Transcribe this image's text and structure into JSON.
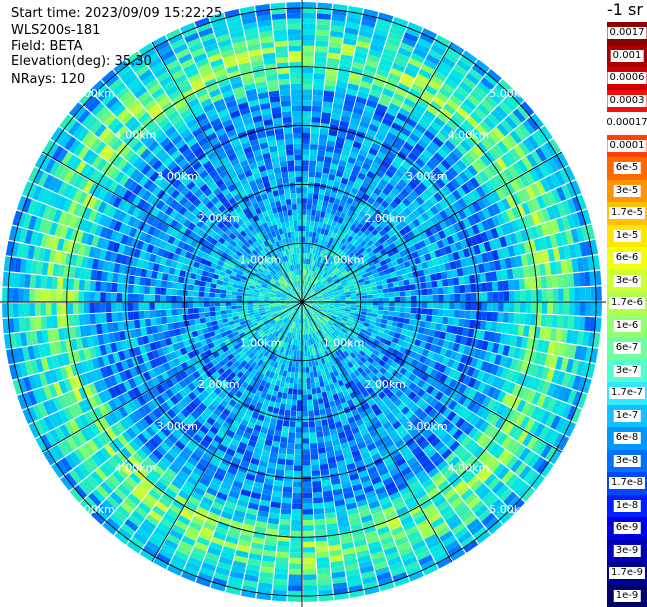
{
  "info": {
    "start_time": "Start time: 2023/09/09 15:22:25",
    "instrument": "WLS200s-181",
    "field": "Field: BETA",
    "elevation": "Elevation(deg): 35.30",
    "nrays": "NRays: 120"
  },
  "colorbar": {
    "unit": "-1 sr",
    "ticks": [
      "0.0017",
      "0.001",
      "0.0006",
      "0.0003",
      "0.00017",
      "0.0001",
      "6e-5",
      "3e-5",
      "1.7e-5",
      "1e-5",
      "6e-6",
      "3e-6",
      "1.7e-6",
      "1e-6",
      "6e-7",
      "3e-7",
      "1.7e-7",
      "1e-7",
      "6e-8",
      "3e-8",
      "1.7e-8",
      "1e-8",
      "6e-9",
      "3e-9",
      "1.7e-9",
      "1e-9"
    ],
    "colors": [
      "#8b0000",
      "#aa0000",
      "#d00000",
      "#f01010",
      "#ffffff",
      "#ff4000",
      "#ff6a00",
      "#ff9400",
      "#ffbe00",
      "#ffe600",
      "#f0ff10",
      "#ceff30",
      "#b0ff50",
      "#90ff70",
      "#70ffa0",
      "#50ffcf",
      "#30e8ff",
      "#10c0ff",
      "#0098ff",
      "#0070ff",
      "#0048ff",
      "#0020ff",
      "#0000e0",
      "#0000b8",
      "#000090",
      "#000068"
    ]
  },
  "chart_data": {
    "type": "heatmap",
    "projection": "polar PPI (plan position indicator)",
    "field": "BETA",
    "units": "-1 sr",
    "elevation_deg": 35.3,
    "n_rays": 120,
    "range_rings_km": [
      1.0,
      2.0,
      3.0,
      4.0,
      5.0
    ],
    "range_labels": [
      "1.00km",
      "2.00km",
      "3.00km",
      "4.00km",
      "5.00km"
    ],
    "spokes_deg": [
      0,
      30,
      60,
      90,
      120,
      150,
      180,
      210,
      240,
      270,
      300,
      330
    ],
    "value_range": [
      1e-09,
      0.0017
    ],
    "description_levels": {
      "0_1km": "1e-7",
      "1_4km": "1e-8",
      "4_5km": "1e-7"
    }
  }
}
